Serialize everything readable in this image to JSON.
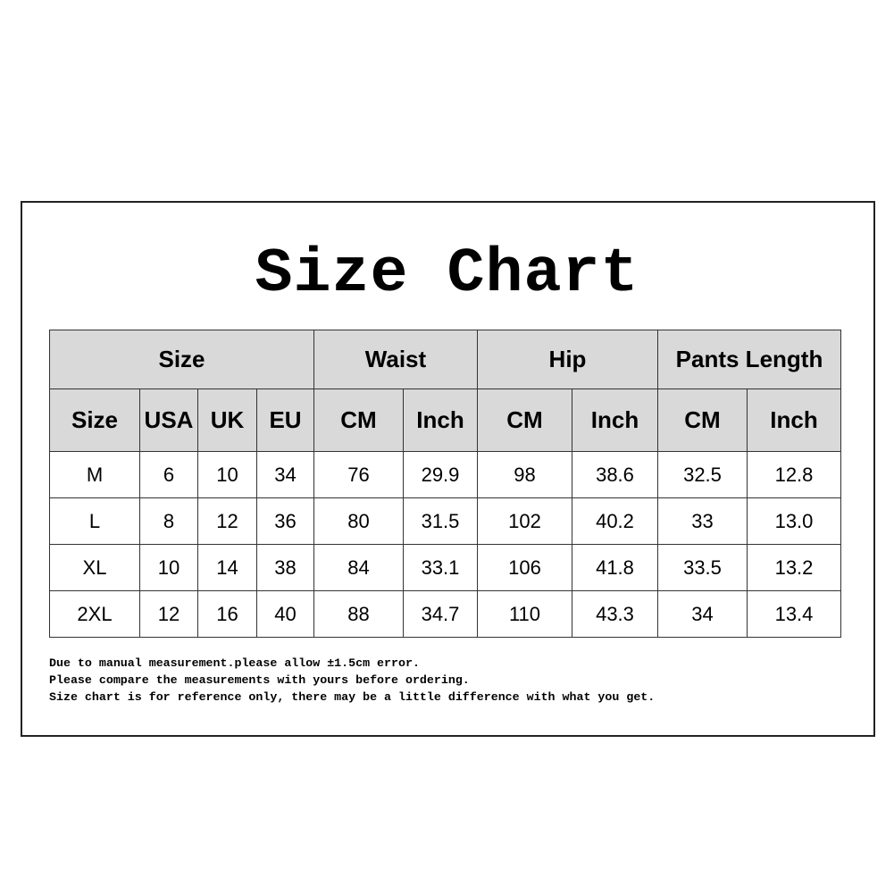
{
  "title": "Size Chart",
  "table": {
    "groups": [
      "Size",
      "Waist",
      "Hip",
      "Pants Length"
    ],
    "columns": [
      "Size",
      "USA",
      "UK",
      "EU",
      "CM",
      "Inch",
      "CM",
      "Inch",
      "CM",
      "Inch"
    ],
    "rows": [
      [
        "M",
        "6",
        "10",
        "34",
        "76",
        "29.9",
        "98",
        "38.6",
        "32.5",
        "12.8"
      ],
      [
        "L",
        "8",
        "12",
        "36",
        "80",
        "31.5",
        "102",
        "40.2",
        "33",
        "13.0"
      ],
      [
        "XL",
        "10",
        "14",
        "38",
        "84",
        "33.1",
        "106",
        "41.8",
        "33.5",
        "13.2"
      ],
      [
        "2XL",
        "12",
        "16",
        "40",
        "88",
        "34.7",
        "110",
        "43.3",
        "34",
        "13.4"
      ]
    ]
  },
  "notes": [
    "Due to manual measurement.please allow ±1.5cm error.",
    "Please compare the measurements with yours before ordering.",
    "Size chart is for reference only, there may be a little difference with what you get."
  ],
  "colors": {
    "header_bg": "#d9d9d9",
    "border": "#333333"
  }
}
